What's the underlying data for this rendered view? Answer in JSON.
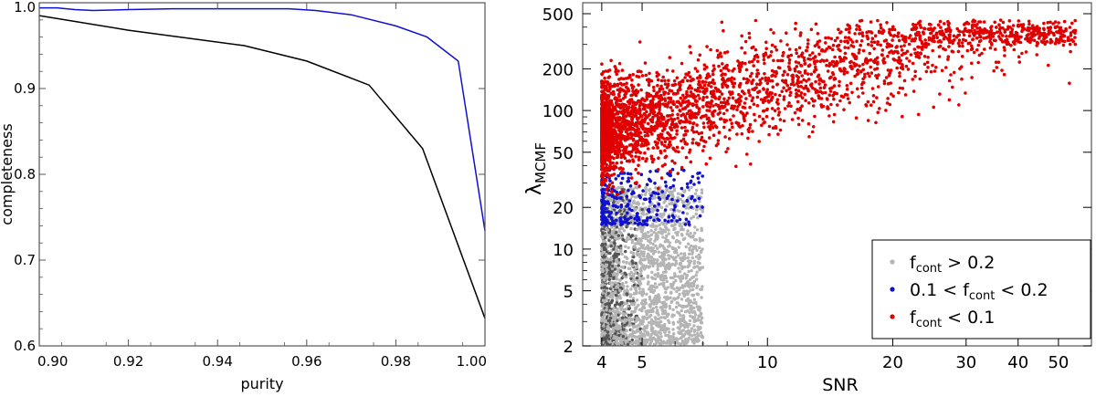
{
  "chart_data": [
    {
      "type": "line",
      "xlabel": "purity",
      "ylabel": "completeness",
      "xlim": [
        0.9,
        1.0
      ],
      "ylim": [
        0.6,
        1.0
      ],
      "xticks": [
        0.9,
        0.92,
        0.94,
        0.96,
        0.98,
        1.0
      ],
      "xtick_labels": [
        "0.90",
        "0.92",
        "0.94",
        "0.96",
        "0.98",
        "1.00"
      ],
      "yticks": [
        0.6,
        0.7,
        0.8,
        0.9,
        1.0
      ],
      "ytick_labels": [
        "0.6",
        "0.7",
        "0.8",
        "0.9",
        "1.0"
      ],
      "grid": false,
      "series": [
        {
          "color": "#1010d0",
          "x": [
            0.9,
            0.904,
            0.908,
            0.912,
            0.92,
            0.93,
            0.946,
            0.956,
            0.962,
            0.97,
            0.98,
            0.987,
            0.994,
            1.0
          ],
          "y": [
            0.994,
            0.994,
            0.992,
            0.991,
            0.992,
            0.993,
            0.993,
            0.993,
            0.991,
            0.986,
            0.973,
            0.96,
            0.932,
            0.734
          ]
        },
        {
          "color": "#000000",
          "x": [
            0.9,
            0.92,
            0.946,
            0.96,
            0.974,
            0.986,
            1.0
          ],
          "y": [
            0.985,
            0.968,
            0.95,
            0.932,
            0.904,
            0.83,
            0.632
          ]
        }
      ]
    },
    {
      "type": "scatter",
      "xlabel": "SNR",
      "ylabel": "λ",
      "ylabel_sub": "MCMF",
      "xscale": "log",
      "yscale": "log",
      "xlim": [
        3.6,
        60
      ],
      "ylim": [
        2,
        600
      ],
      "xticks": [
        4,
        5,
        10,
        20,
        30,
        40,
        50
      ],
      "xtick_labels": [
        "4",
        "5",
        "10",
        "20",
        "30",
        "40",
        "50"
      ],
      "yticks": [
        2,
        5,
        10,
        20,
        50,
        100,
        200,
        500
      ],
      "ytick_labels": [
        "2",
        "5",
        "10",
        "20",
        "50",
        "100",
        "200",
        "500"
      ],
      "grid": false,
      "legend_position": "bottom-right",
      "legend": [
        {
          "color": "#b4b4b4",
          "parts": [
            "f",
            "cont",
            " > 0.2"
          ]
        },
        {
          "color": "#1010d0",
          "parts": [
            "0.1 < f",
            "cont",
            " < 0.2"
          ]
        },
        {
          "color": "#e00000",
          "parts": [
            "f",
            "cont",
            " < 0.1"
          ]
        }
      ],
      "series": [
        {
          "color": "#b4b4b4",
          "count": 2400,
          "x_range": [
            4.0,
            7.2
          ],
          "y_range": [
            2.0,
            28
          ],
          "x_mode": 4.0,
          "y_mode": 4.5
        },
        {
          "color": "#1010d0",
          "count": 260,
          "x_range": [
            4.0,
            7.0
          ],
          "y_range": [
            15,
            38
          ],
          "x_mode": 4.0,
          "y_mode": 19
        },
        {
          "color": "#e00000",
          "count": 3200,
          "x_range": [
            4.0,
            55.0
          ],
          "y_range": [
            22,
            450
          ],
          "x_mode": 4.4,
          "y_mode": 80
        }
      ]
    }
  ]
}
